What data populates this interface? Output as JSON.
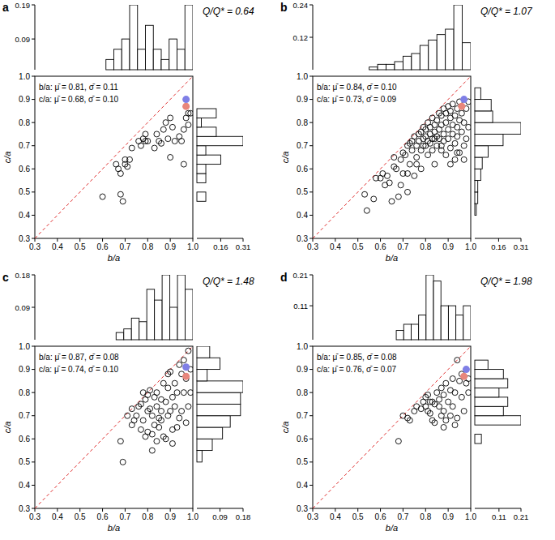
{
  "chart_data": [
    {
      "type": "scatter",
      "title": "a",
      "annotations": [
        "Q/Q* = 0.64",
        "b/a: μ̄ = 0.81, σ̄ = 0.11",
        "c/a: μ̄ = 0.68, σ̄ = 0.10"
      ],
      "x_label": "b/a",
      "y_label": "c/a",
      "xlim": [
        0.3,
        1.0
      ],
      "ylim": [
        0.3,
        1.0
      ],
      "xticks": [
        0.3,
        0.4,
        0.5,
        0.6,
        0.7,
        0.8,
        0.9,
        {
          "value": 1.0,
          "label": "1.0"
        }
      ],
      "yticks": [
        0.3,
        0.4,
        0.5,
        0.6,
        0.7,
        0.8,
        0.9,
        {
          "value": 1.0,
          "label": "1.0"
        }
      ],
      "series": [
        {
          "type": "line",
          "line_style": "dashed",
          "color": "#e03030",
          "x": [
            0.3,
            1.0
          ],
          "values": [
            0.3,
            1.0
          ]
        },
        {
          "type": "scatter",
          "marker": "open-circle",
          "color": "#000000",
          "x": [
            0.6,
            0.66,
            0.67,
            0.68,
            0.68,
            0.69,
            0.7,
            0.71,
            0.72,
            0.73,
            0.7,
            0.76,
            0.77,
            0.78,
            0.79,
            0.8,
            0.79,
            0.83,
            0.84,
            0.85,
            0.86,
            0.87,
            0.88,
            0.89,
            0.9,
            0.91,
            0.92,
            0.9,
            0.94,
            0.95,
            0.96,
            0.96,
            0.97,
            0.98,
            0.98,
            0.99
          ],
          "values": [
            0.48,
            0.62,
            0.6,
            0.58,
            0.49,
            0.46,
            0.62,
            0.61,
            0.64,
            0.69,
            0.64,
            0.72,
            0.7,
            0.73,
            0.72,
            0.72,
            0.75,
            0.69,
            0.75,
            0.72,
            0.71,
            0.77,
            0.8,
            0.73,
            0.82,
            0.78,
            0.72,
            0.65,
            0.74,
            0.72,
            0.62,
            0.77,
            0.82,
            0.84,
            0.79,
            0.84
          ]
        },
        {
          "type": "scatter",
          "marker": "filled-circle",
          "color": "#e8867c",
          "x": [
            0.97
          ],
          "values": [
            0.87
          ]
        },
        {
          "type": "scatter",
          "marker": "filled-circle",
          "color": "#7f7fe6",
          "x": [
            0.97
          ],
          "values": [
            0.9
          ]
        }
      ],
      "top_histogram": {
        "type": "histogram",
        "bins": [
          0.615,
          0.65,
          0.685,
          0.72,
          0.755,
          0.79,
          0.825,
          0.86,
          0.895,
          0.93,
          0.965,
          1.0
        ],
        "values": [
          0.03,
          0.06,
          0.09,
          0.19,
          0.06,
          0.13,
          0.06,
          0.03,
          0.09,
          0.06,
          0.19
        ],
        "ylim": [
          0,
          0.19
        ],
        "yticks": [
          0.09,
          0.19
        ]
      },
      "right_histogram": {
        "type": "histogram",
        "orientation": "horizontal",
        "bins": [
          0.46,
          0.5,
          0.54,
          0.58,
          0.62,
          0.66,
          0.7,
          0.74,
          0.78,
          0.82,
          0.86
        ],
        "values": [
          0.06,
          0,
          0.06,
          0.06,
          0.16,
          0.06,
          0.31,
          0.13,
          0.03,
          0.13
        ],
        "xlim": [
          0,
          0.31
        ],
        "xticks": [
          0.16,
          0.31
        ]
      }
    },
    {
      "type": "scatter",
      "title": "b",
      "annotations": [
        "Q/Q* = 1.07",
        "b/a: μ̄ = 0.84, σ̄ = 0.10",
        "c/a: μ̄ = 0.73, σ̄ = 0.09"
      ],
      "x_label": "b/a",
      "y_label": "c/a",
      "xlim": [
        0.3,
        1.0
      ],
      "ylim": [
        0.3,
        1.0
      ],
      "xticks": [
        0.3,
        0.4,
        0.5,
        0.6,
        0.7,
        0.8,
        0.9,
        {
          "value": 1.0,
          "label": "1.0"
        }
      ],
      "yticks": [
        0.3,
        0.4,
        0.5,
        0.6,
        0.7,
        0.8,
        0.9,
        {
          "value": 1.0,
          "label": "1.0"
        }
      ],
      "series": [
        {
          "type": "line",
          "line_style": "dashed",
          "color": "#e03030",
          "x": [
            0.3,
            1.0
          ],
          "values": [
            0.3,
            1.0
          ]
        },
        {
          "type": "scatter",
          "marker": "open-circle",
          "color": "#000000",
          "x": [
            0.53,
            0.54,
            0.57,
            0.58,
            0.6,
            0.61,
            0.62,
            0.63,
            0.65,
            0.66,
            0.66,
            0.67,
            0.68,
            0.69,
            0.7,
            0.7,
            0.71,
            0.72,
            0.72,
            0.73,
            0.73,
            0.74,
            0.74,
            0.75,
            0.75,
            0.76,
            0.76,
            0.77,
            0.77,
            0.78,
            0.78,
            0.78,
            0.79,
            0.79,
            0.8,
            0.8,
            0.8,
            0.81,
            0.81,
            0.81,
            0.82,
            0.82,
            0.82,
            0.83,
            0.83,
            0.83,
            0.84,
            0.84,
            0.84,
            0.85,
            0.85,
            0.85,
            0.86,
            0.86,
            0.86,
            0.87,
            0.87,
            0.87,
            0.88,
            0.88,
            0.88,
            0.89,
            0.89,
            0.89,
            0.9,
            0.9,
            0.9,
            0.91,
            0.91,
            0.91,
            0.92,
            0.92,
            0.92,
            0.93,
            0.93,
            0.93,
            0.94,
            0.94,
            0.94,
            0.95,
            0.95,
            0.95,
            0.96,
            0.96,
            0.97,
            0.97,
            0.98,
            0.98,
            0.99,
            0.99,
            0.87,
            0.84,
            0.79,
            0.76,
            0.72,
            0.64,
            0.69,
            0.91,
            0.94,
            0.97
          ],
          "values": [
            0.49,
            0.42,
            0.47,
            0.56,
            0.56,
            0.58,
            0.53,
            0.57,
            0.46,
            0.61,
            0.65,
            0.6,
            0.48,
            0.64,
            0.58,
            0.67,
            0.66,
            0.5,
            0.7,
            0.62,
            0.71,
            0.68,
            0.72,
            0.57,
            0.74,
            0.65,
            0.7,
            0.75,
            0.72,
            0.6,
            0.68,
            0.76,
            0.73,
            0.78,
            0.74,
            0.7,
            0.77,
            0.72,
            0.66,
            0.8,
            0.75,
            0.71,
            0.78,
            0.73,
            0.68,
            0.82,
            0.76,
            0.79,
            0.62,
            0.74,
            0.81,
            0.7,
            0.77,
            0.84,
            0.73,
            0.79,
            0.68,
            0.83,
            0.75,
            0.86,
            0.72,
            0.8,
            0.84,
            0.66,
            0.77,
            0.87,
            0.73,
            0.82,
            0.69,
            0.85,
            0.79,
            0.75,
            0.88,
            0.83,
            0.64,
            0.71,
            0.86,
            0.78,
            0.74,
            0.89,
            0.81,
            0.67,
            0.76,
            0.84,
            0.7,
            0.8,
            0.86,
            0.73,
            0.78,
            0.89,
            0.7,
            0.73,
            0.7,
            0.62,
            0.58,
            0.54,
            0.53,
            0.62,
            0.67,
            0.64
          ]
        },
        {
          "type": "scatter",
          "marker": "filled-circle",
          "color": "#e8867c",
          "x": [
            0.96
          ],
          "values": [
            0.87
          ]
        },
        {
          "type": "scatter",
          "marker": "filled-circle",
          "color": "#7f7fe6",
          "x": [
            0.97
          ],
          "values": [
            0.9
          ]
        }
      ],
      "top_histogram": {
        "type": "histogram",
        "bins": [
          0.55,
          0.5875,
          0.625,
          0.6625,
          0.7,
          0.7375,
          0.775,
          0.8125,
          0.85,
          0.8875,
          0.925,
          0.9625,
          1.0
        ],
        "values": [
          0.01,
          0.02,
          0.02,
          0.03,
          0.05,
          0.06,
          0.09,
          0.11,
          0.13,
          0.15,
          0.24,
          0.1
        ],
        "ylim": [
          0,
          0.24
        ],
        "yticks": [
          0.12,
          0.24
        ]
      },
      "right_histogram": {
        "type": "histogram",
        "orientation": "horizontal",
        "bins": [
          0.4,
          0.45,
          0.5,
          0.55,
          0.6,
          0.65,
          0.7,
          0.75,
          0.8,
          0.85,
          0.9,
          0.95
        ],
        "values": [
          0.01,
          0.02,
          0.02,
          0.04,
          0.05,
          0.09,
          0.19,
          0.31,
          0.12,
          0.11,
          0.04
        ],
        "xlim": [
          0,
          0.31
        ],
        "xticks": [
          0.16,
          0.31
        ]
      }
    },
    {
      "type": "scatter",
      "title": "c",
      "annotations": [
        "Q/Q* = 1.48",
        "b/a: μ̄ = 0.87, σ̄ = 0.08",
        "c/a: μ̄ = 0.74, σ̄ = 0.10"
      ],
      "x_label": "b/a",
      "y_label": "c/a",
      "xlim": [
        0.3,
        1.0
      ],
      "ylim": [
        0.3,
        1.0
      ],
      "xticks": [
        0.3,
        0.4,
        0.5,
        0.6,
        0.7,
        0.8,
        0.9,
        {
          "value": 1.0,
          "label": "1.0"
        }
      ],
      "yticks": [
        0.3,
        0.4,
        0.5,
        0.6,
        0.7,
        0.8,
        0.9,
        {
          "value": 1.0,
          "label": "1.0"
        }
      ],
      "series": [
        {
          "type": "line",
          "line_style": "dashed",
          "color": "#e03030",
          "x": [
            0.3,
            1.0
          ],
          "values": [
            0.3,
            1.0
          ]
        },
        {
          "type": "scatter",
          "marker": "open-circle",
          "color": "#000000",
          "x": [
            0.68,
            0.69,
            0.71,
            0.73,
            0.73,
            0.74,
            0.75,
            0.76,
            0.77,
            0.77,
            0.78,
            0.78,
            0.79,
            0.79,
            0.8,
            0.8,
            0.8,
            0.81,
            0.81,
            0.82,
            0.82,
            0.82,
            0.83,
            0.83,
            0.84,
            0.84,
            0.85,
            0.85,
            0.86,
            0.86,
            0.87,
            0.87,
            0.88,
            0.88,
            0.89,
            0.89,
            0.89,
            0.9,
            0.9,
            0.91,
            0.91,
            0.92,
            0.92,
            0.93,
            0.93,
            0.94,
            0.94,
            0.95,
            0.95,
            0.96,
            0.96,
            0.97,
            0.97,
            0.98,
            0.98,
            0.99,
            0.99,
            0.91,
            0.86,
            0.84
          ],
          "values": [
            0.59,
            0.5,
            0.7,
            0.66,
            0.73,
            0.68,
            0.7,
            0.74,
            0.64,
            0.75,
            0.68,
            0.8,
            0.61,
            0.77,
            0.79,
            0.63,
            0.72,
            0.73,
            0.81,
            0.55,
            0.62,
            0.7,
            0.78,
            0.66,
            0.74,
            0.8,
            0.65,
            0.69,
            0.77,
            0.72,
            0.84,
            0.61,
            0.6,
            0.76,
            0.7,
            0.82,
            0.88,
            0.89,
            0.72,
            0.58,
            0.78,
            0.74,
            0.84,
            0.8,
            0.65,
            0.92,
            0.69,
            0.88,
            0.72,
            0.8,
            0.94,
            0.67,
            0.86,
            0.98,
            0.74,
            0.8,
            0.9,
            0.64,
            0.68,
            0.59
          ]
        },
        {
          "type": "scatter",
          "marker": "filled-circle",
          "color": "#e8867c",
          "x": [
            0.97
          ],
          "values": [
            0.87
          ]
        },
        {
          "type": "scatter",
          "marker": "filled-circle",
          "color": "#7f7fe6",
          "x": [
            0.97
          ],
          "values": [
            0.91
          ]
        }
      ],
      "top_histogram": {
        "type": "histogram",
        "bins": [
          0.66,
          0.694,
          0.728,
          0.762,
          0.796,
          0.83,
          0.864,
          0.898,
          0.932,
          0.966,
          1.0
        ],
        "values": [
          0.02,
          0.03,
          0.06,
          0.05,
          0.14,
          0.11,
          0.18,
          0.09,
          0.18,
          0.14
        ],
        "ylim": [
          0,
          0.18
        ],
        "yticks": [
          0.09,
          0.18
        ]
      },
      "right_histogram": {
        "type": "histogram",
        "orientation": "horizontal",
        "bins": [
          0.5,
          0.55,
          0.6,
          0.65,
          0.7,
          0.75,
          0.8,
          0.85,
          0.9,
          0.95,
          1.0
        ],
        "values": [
          0.02,
          0.06,
          0.1,
          0.13,
          0.17,
          0.17,
          0.18,
          0.04,
          0.09,
          0.05
        ],
        "xlim": [
          0,
          0.18
        ],
        "xticks": [
          0.09,
          0.18
        ]
      }
    },
    {
      "type": "scatter",
      "title": "d",
      "annotations": [
        "Q/Q* = 1.98",
        "b/a: μ̄ = 0.85, σ̄ = 0.08",
        "c/a: μ̄ = 0.76, σ̄ = 0.07"
      ],
      "x_label": "b/a",
      "y_label": "c/a",
      "xlim": [
        0.3,
        1.0
      ],
      "ylim": [
        0.3,
        1.0
      ],
      "xticks": [
        0.3,
        0.4,
        0.5,
        0.6,
        0.7,
        0.8,
        0.9,
        {
          "value": 1.0,
          "label": "1.0"
        }
      ],
      "yticks": [
        0.3,
        0.4,
        0.5,
        0.6,
        0.7,
        0.8,
        0.9,
        {
          "value": 1.0,
          "label": "1.0"
        }
      ],
      "series": [
        {
          "type": "line",
          "line_style": "dashed",
          "color": "#e03030",
          "x": [
            0.3,
            1.0
          ],
          "values": [
            0.3,
            1.0
          ]
        },
        {
          "type": "scatter",
          "marker": "open-circle",
          "color": "#000000",
          "x": [
            0.68,
            0.7,
            0.72,
            0.73,
            0.75,
            0.76,
            0.78,
            0.79,
            0.8,
            0.8,
            0.81,
            0.81,
            0.82,
            0.82,
            0.83,
            0.84,
            0.84,
            0.85,
            0.86,
            0.86,
            0.87,
            0.87,
            0.88,
            0.88,
            0.89,
            0.89,
            0.9,
            0.91,
            0.91,
            0.92,
            0.92,
            0.93,
            0.93,
            0.94,
            0.94,
            0.95,
            0.96,
            0.96,
            0.97,
            0.98,
            0.99,
            0.99,
            0.88,
            0.83
          ],
          "values": [
            0.59,
            0.7,
            0.69,
            0.68,
            0.72,
            0.74,
            0.73,
            0.76,
            0.74,
            0.78,
            0.79,
            0.72,
            0.71,
            0.76,
            0.68,
            0.67,
            0.75,
            0.8,
            0.74,
            0.77,
            0.82,
            0.7,
            0.72,
            0.79,
            0.84,
            0.68,
            0.76,
            0.7,
            0.81,
            0.86,
            0.74,
            0.66,
            0.8,
            0.94,
            0.69,
            0.85,
            0.78,
            0.88,
            0.72,
            0.84,
            0.86,
            0.8,
            0.65,
            0.76
          ]
        },
        {
          "type": "scatter",
          "marker": "filled-circle",
          "color": "#e8867c",
          "x": [
            0.97
          ],
          "values": [
            0.87
          ]
        },
        {
          "type": "scatter",
          "marker": "filled-circle",
          "color": "#7f7fe6",
          "x": [
            0.98
          ],
          "values": [
            0.9
          ]
        }
      ],
      "top_histogram": {
        "type": "histogram",
        "bins": [
          0.67,
          0.703,
          0.736,
          0.769,
          0.802,
          0.835,
          0.868,
          0.901,
          0.934,
          0.967,
          1.0
        ],
        "values": [
          0.03,
          0.05,
          0.05,
          0.08,
          0.21,
          0.19,
          0.11,
          0.11,
          0.08,
          0.11
        ],
        "ylim": [
          0,
          0.21
        ],
        "yticks": [
          0.11,
          0.21
        ]
      },
      "right_histogram": {
        "type": "histogram",
        "orientation": "horizontal",
        "bins": [
          0.58,
          0.62,
          0.66,
          0.7,
          0.74,
          0.78,
          0.82,
          0.86,
          0.9,
          0.94
        ],
        "values": [
          0.03,
          0,
          0.21,
          0.13,
          0.15,
          0.11,
          0.15,
          0.13,
          0.06
        ],
        "xlim": [
          0,
          0.21
        ],
        "xticks": [
          0.11,
          0.21
        ]
      }
    }
  ]
}
